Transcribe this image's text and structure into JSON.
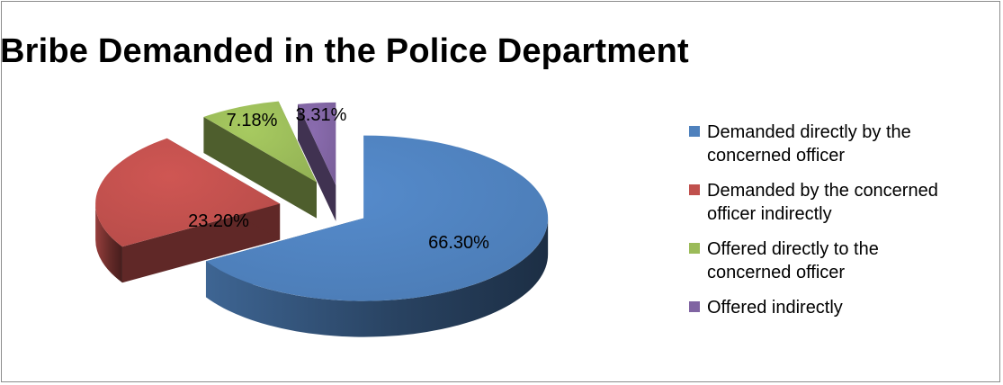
{
  "chart_data": {
    "type": "pie",
    "title": "Bribe Demanded in the Police Department",
    "categories": [
      "Demanded directly by the concerned officer",
      "Demanded by the concerned officer indirectly",
      "Offered directly to the concerned officer",
      "Offered indirectly"
    ],
    "values": [
      66.3,
      23.2,
      7.18,
      3.31
    ],
    "data_labels": [
      "66.30%",
      "23.20%",
      "7.18%",
      "3.31%"
    ],
    "colors": [
      "#4f81bd",
      "#c0504d",
      "#9bbb59",
      "#8064a2"
    ],
    "exploded": true,
    "three_d": true,
    "legend_position": "right"
  },
  "legend": {
    "items": [
      {
        "line1": "Demanded directly by the",
        "line2": "concerned officer"
      },
      {
        "line1": "Demanded by the concerned",
        "line2": "officer indirectly"
      },
      {
        "line1": "Offered directly to the",
        "line2": "concerned officer"
      },
      {
        "line1": "Offered indirectly",
        "line2": ""
      }
    ]
  }
}
